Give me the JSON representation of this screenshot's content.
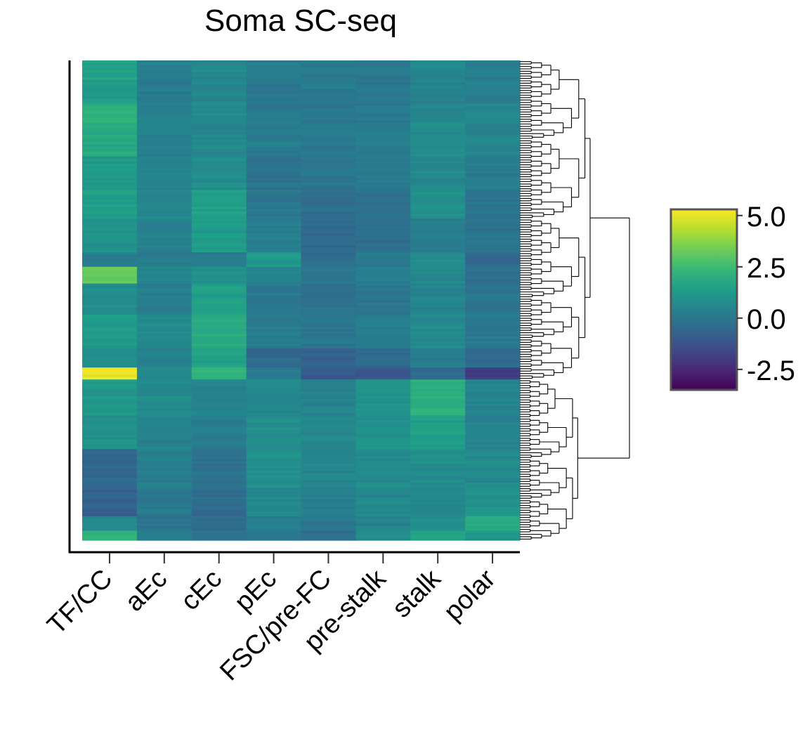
{
  "chart_data": {
    "type": "heatmap",
    "title": "Soma SC-seq",
    "xlabel": "",
    "ylabel": "",
    "categories": [
      "TF/CC",
      "aEc",
      "cEc",
      "pEc",
      "FSC/pre-FC",
      "pre-stalk",
      "stalk",
      "polar"
    ],
    "n_rows": 200,
    "row_dendrogram": true,
    "colorscale": "viridis",
    "colorbar": {
      "min": -3.5,
      "max": 5.3,
      "ticks": [
        5.0,
        2.5,
        0.0,
        -2.5
      ],
      "tick_labels": [
        "5.0",
        "2.5",
        "0.0",
        "-2.5"
      ],
      "placement": "right"
    },
    "row_blocks": [
      {
        "start": 0,
        "end": 8,
        "values": [
          1.6,
          0.3,
          0.6,
          0.2,
          0.1,
          0.1,
          0.6,
          0.2
        ]
      },
      {
        "start": 8,
        "end": 18,
        "values": [
          1.3,
          0.2,
          0.5,
          0.0,
          0.1,
          0.0,
          0.4,
          0.3
        ]
      },
      {
        "start": 18,
        "end": 26,
        "values": [
          2.1,
          0.3,
          0.7,
          0.1,
          0.0,
          0.1,
          0.5,
          0.6
        ]
      },
      {
        "start": 26,
        "end": 40,
        "values": [
          1.8,
          0.4,
          0.6,
          0.2,
          0.1,
          0.3,
          0.8,
          0.5
        ]
      },
      {
        "start": 40,
        "end": 54,
        "values": [
          1.2,
          0.5,
          0.8,
          -0.2,
          -0.1,
          0.1,
          0.6,
          0.2
        ]
      },
      {
        "start": 54,
        "end": 66,
        "values": [
          1.4,
          0.6,
          1.5,
          0.0,
          -0.3,
          -0.2,
          0.9,
          -0.1
        ]
      },
      {
        "start": 66,
        "end": 80,
        "values": [
          1.0,
          0.4,
          1.3,
          0.3,
          -0.5,
          -0.3,
          0.3,
          -0.2
        ]
      },
      {
        "start": 80,
        "end": 86,
        "values": [
          0.2,
          0.2,
          0.1,
          1.2,
          -0.4,
          0.0,
          0.8,
          -0.5
        ]
      },
      {
        "start": 86,
        "end": 93,
        "values": [
          3.3,
          0.5,
          0.9,
          0.4,
          0.0,
          0.2,
          0.6,
          -0.3
        ]
      },
      {
        "start": 93,
        "end": 106,
        "values": [
          0.8,
          0.3,
          1.4,
          0.1,
          -0.2,
          0.0,
          0.5,
          -0.1
        ]
      },
      {
        "start": 106,
        "end": 120,
        "values": [
          1.3,
          0.7,
          1.9,
          0.2,
          0.0,
          0.3,
          0.7,
          0.1
        ]
      },
      {
        "start": 120,
        "end": 128,
        "values": [
          0.8,
          0.3,
          1.5,
          -0.5,
          -0.7,
          -0.4,
          0.1,
          -0.4
        ]
      },
      {
        "start": 128,
        "end": 133,
        "values": [
          5.0,
          0.6,
          2.2,
          0.0,
          -1.0,
          -1.2,
          -0.6,
          -1.9
        ]
      },
      {
        "start": 133,
        "end": 148,
        "values": [
          1.2,
          0.7,
          0.5,
          0.6,
          0.4,
          1.0,
          2.0,
          0.5
        ]
      },
      {
        "start": 148,
        "end": 162,
        "values": [
          1.0,
          0.4,
          0.2,
          0.8,
          0.6,
          0.9,
          1.4,
          0.4
        ]
      },
      {
        "start": 162,
        "end": 178,
        "values": [
          -0.5,
          0.3,
          -0.2,
          0.9,
          0.5,
          0.7,
          0.8,
          0.7
        ]
      },
      {
        "start": 178,
        "end": 190,
        "values": [
          -0.8,
          0.1,
          -0.4,
          0.6,
          0.3,
          0.6,
          0.6,
          1.0
        ]
      },
      {
        "start": 190,
        "end": 196,
        "values": [
          0.6,
          -0.1,
          -0.3,
          0.2,
          0.0,
          0.4,
          0.9,
          1.9
        ]
      },
      {
        "start": 196,
        "end": 200,
        "values": [
          2.2,
          0.1,
          -0.2,
          0.0,
          -0.3,
          0.8,
          1.7,
          1.1
        ]
      }
    ]
  }
}
